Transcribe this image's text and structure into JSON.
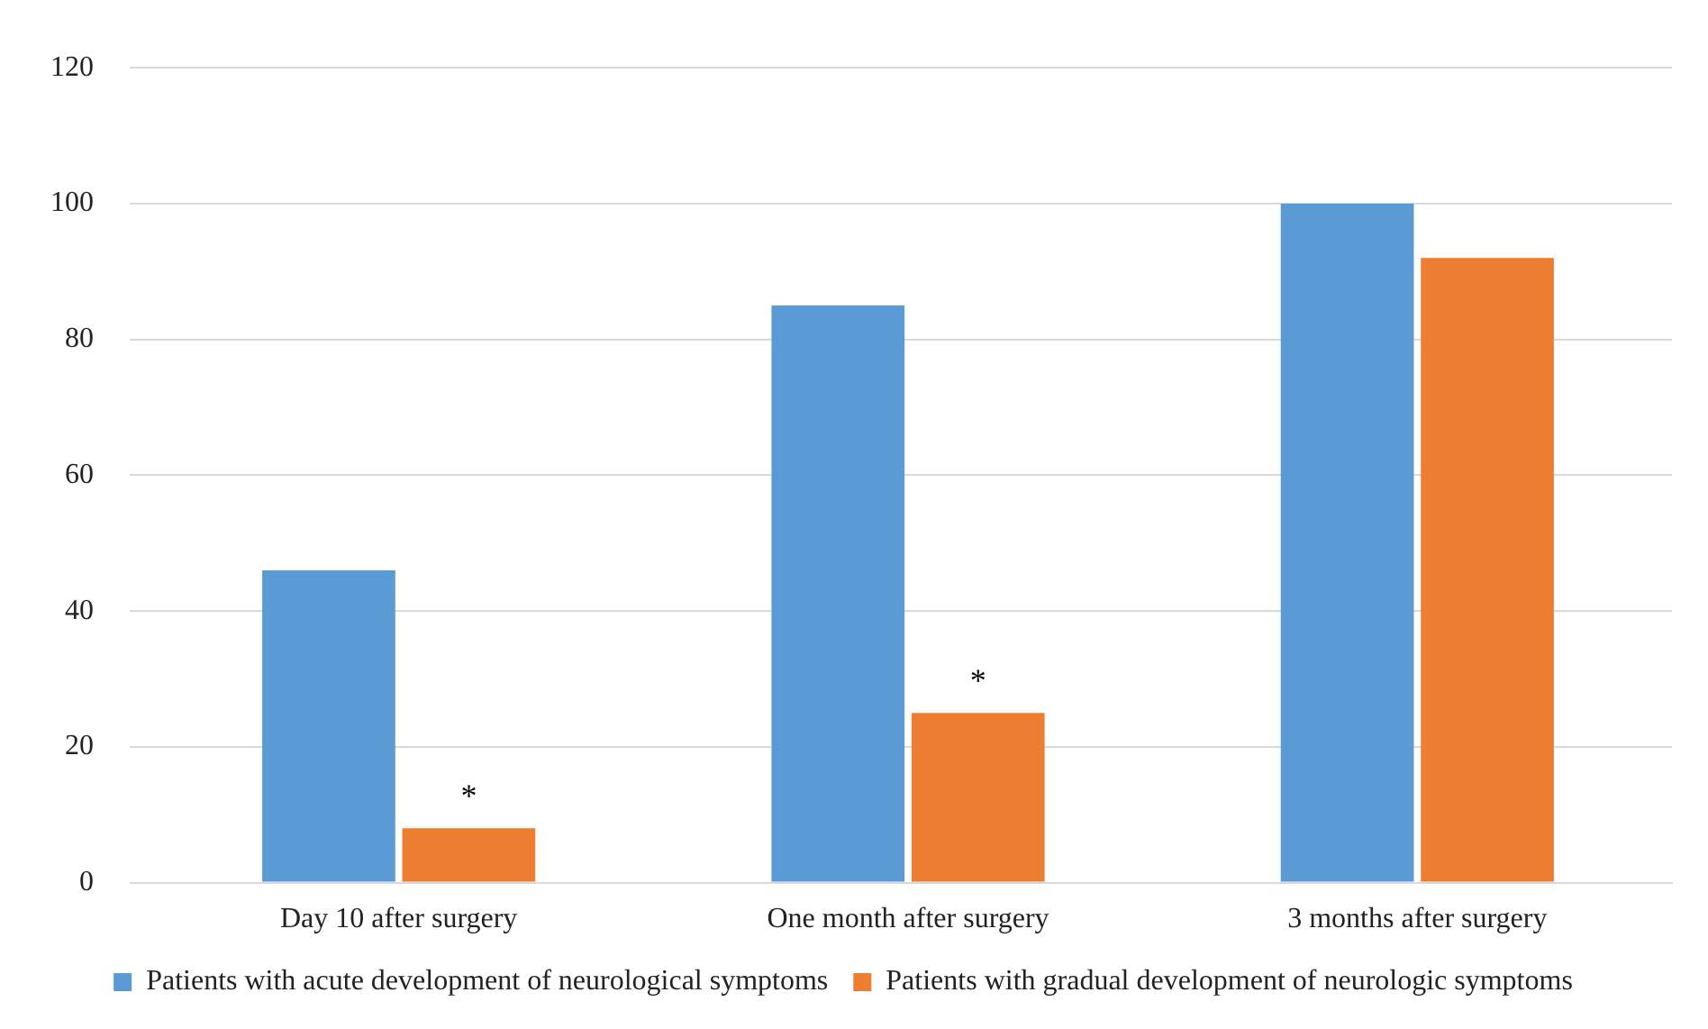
{
  "chart_data": {
    "type": "bar",
    "categories": [
      "Day 10 after surgery",
      "One month after surgery",
      "3 months after surgery"
    ],
    "series": [
      {
        "name": "Patients with acute development of neurological symptoms",
        "color": "#5b9bd5",
        "values": [
          46,
          85,
          100
        ]
      },
      {
        "name": "Patients with gradual development of neurologic symptoms",
        "color": "#ed7d31",
        "values": [
          8,
          25,
          92
        ]
      }
    ],
    "ylim": [
      0,
      120
    ],
    "yticks": [
      0,
      20,
      40,
      60,
      80,
      100,
      120
    ],
    "grid": "y",
    "legend": "bottom",
    "annotations": [
      {
        "text": "*",
        "x": "Day 10 after surgery",
        "y": 8
      },
      {
        "text": "*",
        "x": "One month after surgery",
        "y": 25
      }
    ]
  }
}
